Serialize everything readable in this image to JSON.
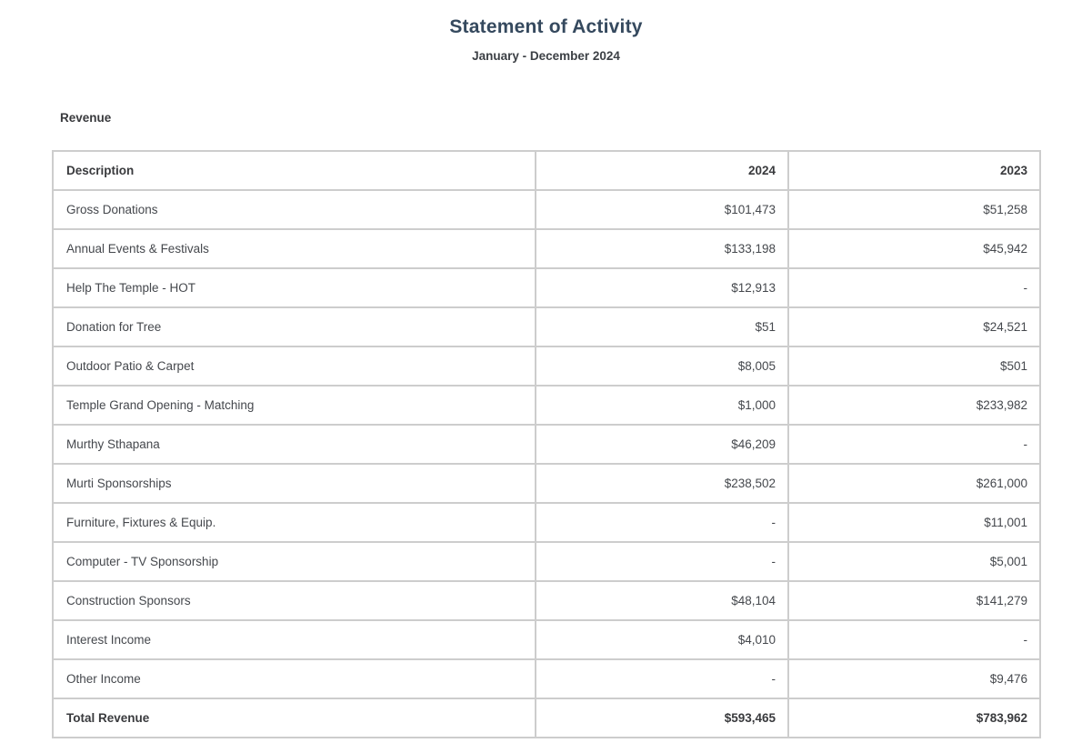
{
  "report": {
    "title": "Statement of Activity",
    "subtitle": "January - December 2024",
    "section_label": "Revenue"
  },
  "table": {
    "columns": [
      "Description",
      "2024",
      "2023"
    ],
    "rows": [
      {
        "description": "Gross Donations",
        "y2024": "$101,473",
        "y2023": "$51,258"
      },
      {
        "description": "Annual Events & Festivals",
        "y2024": "$133,198",
        "y2023": "$45,942"
      },
      {
        "description": "Help The Temple - HOT",
        "y2024": "$12,913",
        "y2023": "-"
      },
      {
        "description": "Donation for Tree",
        "y2024": "$51",
        "y2023": "$24,521"
      },
      {
        "description": "Outdoor Patio & Carpet",
        "y2024": "$8,005",
        "y2023": "$501"
      },
      {
        "description": "Temple Grand Opening - Matching",
        "y2024": "$1,000",
        "y2023": "$233,982"
      },
      {
        "description": "Murthy Sthapana",
        "y2024": "$46,209",
        "y2023": "-"
      },
      {
        "description": "Murti Sponsorships",
        "y2024": "$238,502",
        "y2023": "$261,000"
      },
      {
        "description": "Furniture, Fixtures & Equip.",
        "y2024": "-",
        "y2023": "$11,001"
      },
      {
        "description": "Computer - TV Sponsorship",
        "y2024": "-",
        "y2023": "$5,001"
      },
      {
        "description": "Construction Sponsors",
        "y2024": "$48,104",
        "y2023": "$141,279"
      },
      {
        "description": "Interest Income",
        "y2024": "$4,010",
        "y2023": "-"
      },
      {
        "description": "Other Income",
        "y2024": "-",
        "y2023": "$9,476"
      }
    ],
    "total": {
      "description": "Total Revenue",
      "y2024": "$593,465",
      "y2023": "$783,962"
    }
  },
  "colors": {
    "title": "#35495e",
    "subtitle": "#3c4045",
    "body_text": "#45484d",
    "border": "#cdcdcd",
    "background": "#ffffff"
  }
}
